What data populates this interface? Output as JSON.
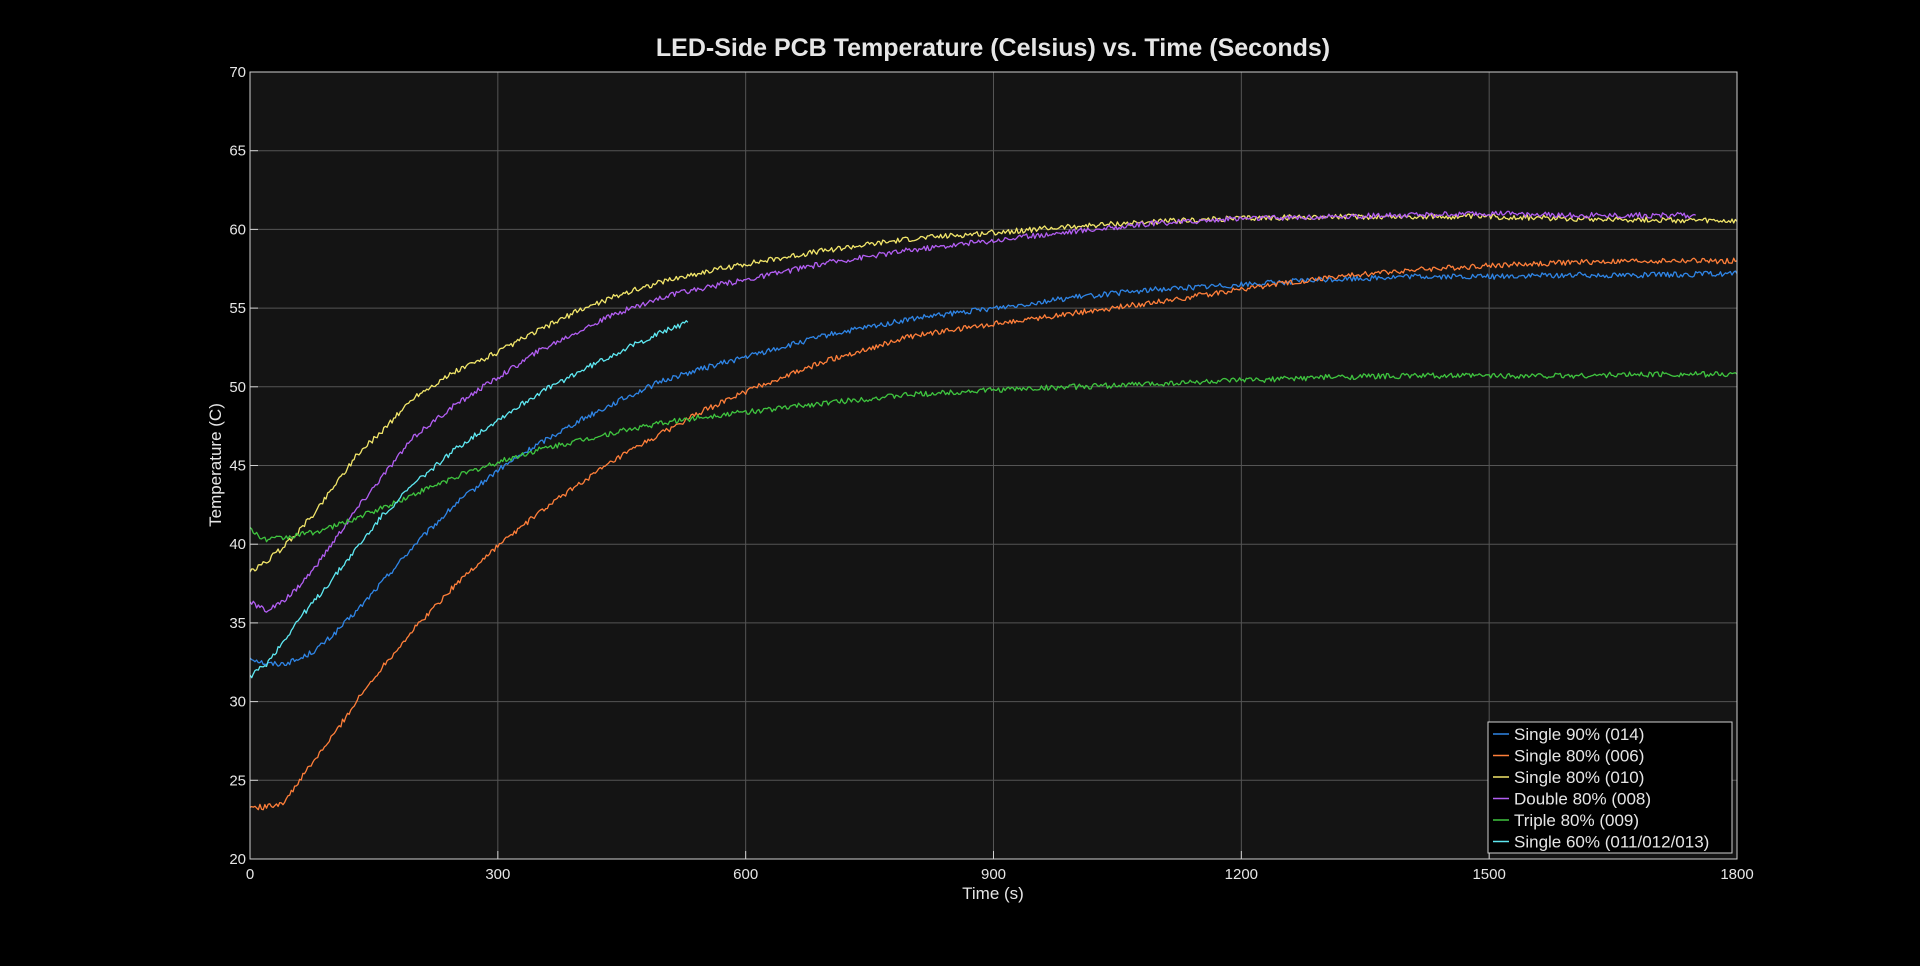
{
  "chart_data": {
    "type": "line",
    "title": "LED-Side PCB Temperature (Celsius) vs. Time (Seconds)",
    "xlabel": "Time (s)",
    "ylabel": "Temperature (C)",
    "xlim": [
      0,
      1800
    ],
    "ylim": [
      20,
      70
    ],
    "xticks": [
      "0",
      "300",
      "600",
      "900",
      "1200",
      "1500",
      "1800"
    ],
    "yticks": [
      "20",
      "25",
      "30",
      "35",
      "40",
      "45",
      "50",
      "55",
      "60",
      "65",
      "70"
    ],
    "grid": true,
    "legend_position": "bottom-right",
    "colors": {
      "background": "#000000",
      "plot_background": "#141414",
      "grid": "#555555",
      "text": "#e6e6e6"
    },
    "series": [
      {
        "name": "Single 90% (014)",
        "color": "#2f85e6",
        "x": [
          0,
          20,
          40,
          60,
          80,
          100,
          130,
          160,
          200,
          250,
          300,
          350,
          400,
          450,
          500,
          550,
          600,
          700,
          800,
          900,
          1000,
          1100,
          1200,
          1300,
          1400,
          1500,
          1600,
          1700,
          1800
        ],
        "y": [
          32.8,
          32.4,
          32.4,
          32.7,
          33.3,
          34.2,
          35.8,
          37.6,
          40.0,
          42.6,
          44.7,
          46.4,
          47.9,
          49.2,
          50.4,
          51.2,
          51.9,
          53.3,
          54.3,
          55.0,
          55.7,
          56.2,
          56.5,
          56.8,
          57.0,
          57.0,
          57.1,
          57.1,
          57.2
        ]
      },
      {
        "name": "Single 80% (006)",
        "color": "#ff7f3a",
        "x": [
          0,
          20,
          40,
          50,
          60,
          80,
          100,
          130,
          160,
          200,
          250,
          300,
          350,
          400,
          450,
          500,
          550,
          600,
          700,
          800,
          900,
          1000,
          1100,
          1200,
          1300,
          1400,
          1500,
          1600,
          1700,
          1800
        ],
        "y": [
          23.3,
          23.3,
          23.6,
          24.2,
          25.0,
          26.4,
          27.8,
          30.1,
          32.2,
          34.7,
          37.5,
          39.9,
          42.0,
          43.9,
          45.6,
          47.1,
          48.5,
          49.7,
          51.7,
          53.2,
          54.0,
          54.7,
          55.4,
          56.2,
          56.9,
          57.4,
          57.7,
          57.9,
          58.0,
          58.0
        ]
      },
      {
        "name": "Single 80% (010)",
        "color": "#f2e66a",
        "x": [
          0,
          20,
          40,
          60,
          80,
          100,
          130,
          160,
          200,
          250,
          300,
          350,
          400,
          450,
          500,
          550,
          600,
          700,
          800,
          900,
          1000,
          1100,
          1200,
          1300,
          1400,
          1500,
          1600,
          1700,
          1800
        ],
        "y": [
          38.2,
          38.9,
          39.8,
          40.9,
          42.1,
          43.6,
          45.7,
          47.2,
          49.4,
          51.0,
          52.2,
          53.6,
          54.9,
          55.9,
          56.7,
          57.3,
          57.8,
          58.7,
          59.4,
          59.8,
          60.2,
          60.5,
          60.7,
          60.8,
          60.8,
          60.8,
          60.7,
          60.6,
          60.5
        ]
      },
      {
        "name": "Double 80% (008)",
        "color": "#b25ef2",
        "x": [
          0,
          20,
          40,
          60,
          80,
          100,
          130,
          160,
          200,
          250,
          300,
          350,
          400,
          450,
          500,
          550,
          600,
          700,
          800,
          900,
          1000,
          1100,
          1200,
          1300,
          1400,
          1500,
          1600,
          1700,
          1750
        ],
        "y": [
          36.3,
          35.8,
          36.3,
          37.4,
          38.6,
          40.1,
          42.3,
          44.3,
          46.9,
          48.9,
          50.6,
          52.3,
          53.6,
          54.8,
          55.7,
          56.3,
          56.8,
          57.9,
          58.7,
          59.3,
          59.9,
          60.4,
          60.7,
          60.8,
          60.9,
          61.0,
          60.9,
          60.9,
          60.9
        ]
      },
      {
        "name": "Triple 80% (009)",
        "color": "#3fc43f",
        "x": [
          0,
          10,
          20,
          40,
          60,
          80,
          100,
          130,
          160,
          200,
          250,
          300,
          350,
          400,
          450,
          500,
          550,
          600,
          700,
          800,
          900,
          1000,
          1100,
          1200,
          1300,
          1400,
          1500,
          1600,
          1700,
          1800
        ],
        "y": [
          41.0,
          40.5,
          40.3,
          40.4,
          40.6,
          40.8,
          41.1,
          41.7,
          42.3,
          43.2,
          44.3,
          45.2,
          46.0,
          46.6,
          47.2,
          47.7,
          48.1,
          48.4,
          49.0,
          49.5,
          49.8,
          50.0,
          50.2,
          50.4,
          50.6,
          50.7,
          50.7,
          50.7,
          50.8,
          50.8
        ]
      },
      {
        "name": "Single 60% (011/012/013)",
        "color": "#5ee8f2",
        "x": [
          0,
          20,
          40,
          60,
          80,
          100,
          130,
          160,
          200,
          250,
          300,
          350,
          400,
          450,
          500,
          530
        ],
        "y": [
          31.6,
          32.4,
          33.8,
          35.3,
          36.5,
          37.8,
          39.8,
          41.8,
          43.9,
          46.1,
          47.9,
          49.6,
          51.0,
          52.3,
          53.5,
          54.1
        ]
      }
    ]
  }
}
